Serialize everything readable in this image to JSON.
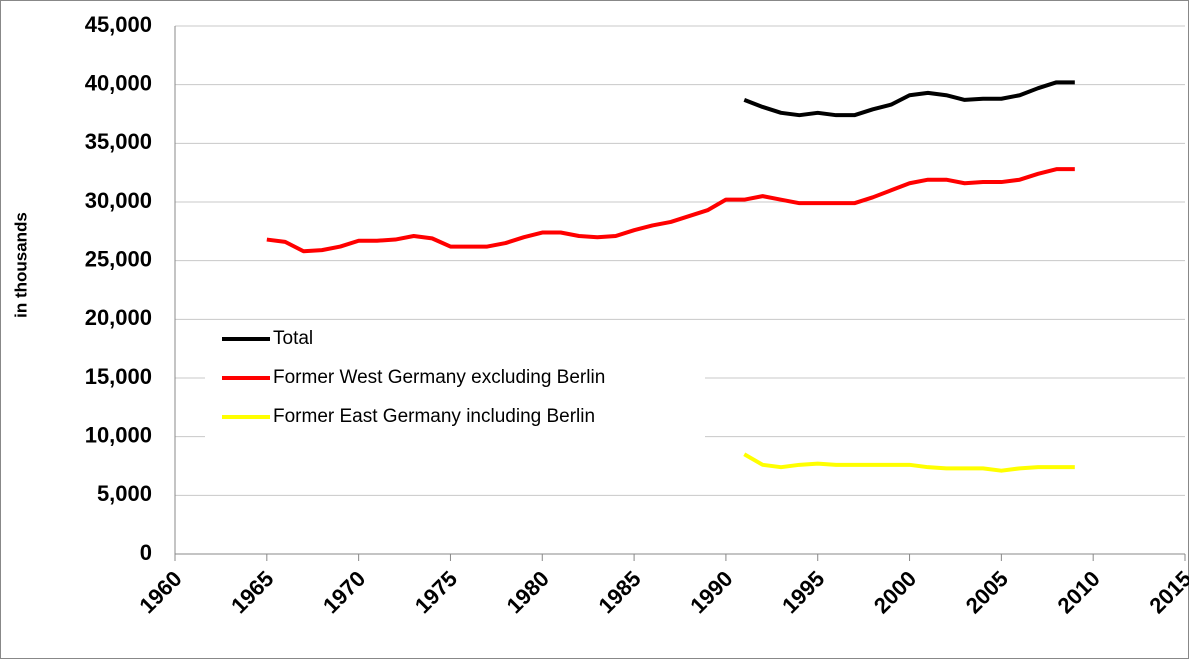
{
  "chart_data": {
    "type": "line",
    "y_label": "in thousands",
    "x": [
      1965,
      1966,
      1967,
      1968,
      1969,
      1970,
      1971,
      1972,
      1973,
      1974,
      1975,
      1976,
      1977,
      1978,
      1979,
      1980,
      1981,
      1982,
      1983,
      1984,
      1985,
      1986,
      1987,
      1988,
      1989,
      1990,
      1991,
      1992,
      1993,
      1994,
      1995,
      1996,
      1997,
      1998,
      1999,
      2000,
      2001,
      2002,
      2003,
      2004,
      2005,
      2006,
      2007,
      2008,
      2009
    ],
    "series": [
      {
        "name": "Total",
        "color": "#000000",
        "values": [
          null,
          null,
          null,
          null,
          null,
          null,
          null,
          null,
          null,
          null,
          null,
          null,
          null,
          null,
          null,
          null,
          null,
          null,
          null,
          null,
          null,
          null,
          null,
          null,
          null,
          null,
          38700,
          38100,
          37600,
          37400,
          37600,
          37400,
          37400,
          37900,
          38300,
          39100,
          39300,
          39100,
          38700,
          38800,
          38800,
          39100,
          39700,
          40200,
          40200
        ]
      },
      {
        "name": "Former West Germany excluding Berlin",
        "color": "#ff0000",
        "values": [
          26800,
          26600,
          25800,
          25900,
          26200,
          26700,
          26700,
          26800,
          27100,
          26900,
          26200,
          26200,
          26200,
          26500,
          27000,
          27400,
          27400,
          27100,
          27000,
          27100,
          27600,
          28000,
          28300,
          28800,
          29300,
          30200,
          30200,
          30500,
          30200,
          29900,
          29900,
          29900,
          29900,
          30400,
          31000,
          31600,
          31900,
          31900,
          31600,
          31700,
          31700,
          31900,
          32400,
          32800,
          32800
        ]
      },
      {
        "name": "Former East Germany including Berlin",
        "color": "#ffff00",
        "values": [
          null,
          null,
          null,
          null,
          null,
          null,
          null,
          null,
          null,
          null,
          null,
          null,
          null,
          null,
          null,
          null,
          null,
          null,
          null,
          null,
          null,
          null,
          null,
          null,
          null,
          null,
          8500,
          7600,
          7400,
          7600,
          7700,
          7600,
          7600,
          7600,
          7600,
          7600,
          7400,
          7300,
          7300,
          7300,
          7100,
          7300,
          7400,
          7400,
          7400
        ]
      }
    ],
    "xlim": [
      1960,
      2015
    ],
    "xticks": [
      1960,
      1965,
      1970,
      1975,
      1980,
      1985,
      1990,
      1995,
      2000,
      2005,
      2010,
      2015
    ],
    "ylim": [
      0,
      45000
    ],
    "yticks": [
      0,
      {
        "value": 5000,
        "label": "5,000"
      },
      {
        "value": 10000,
        "label": "10,000"
      },
      {
        "value": 15000,
        "label": "15,000"
      },
      {
        "value": 20000,
        "label": "20,000"
      },
      {
        "value": 25000,
        "label": "25,000"
      },
      {
        "value": 30000,
        "label": "30,000"
      },
      {
        "value": 35000,
        "label": "35,000"
      },
      {
        "value": 40000,
        "label": "40,000"
      },
      {
        "value": 45000,
        "label": "45,000"
      }
    ],
    "grid": true,
    "legend": "left"
  }
}
